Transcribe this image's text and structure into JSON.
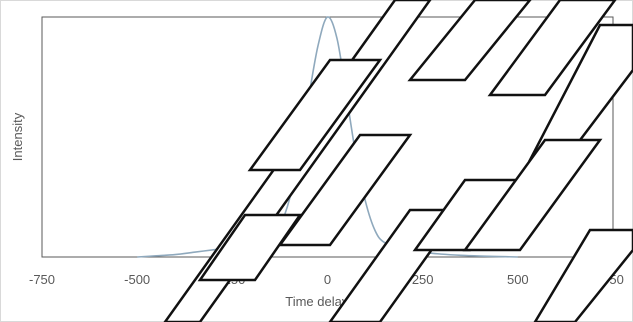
{
  "chart_data": {
    "type": "line",
    "title": "",
    "xlabel": "Time delay (fs)",
    "ylabel": "Intensity",
    "xlim": [
      -750,
      750
    ],
    "ylim": [
      0,
      1
    ],
    "xticks": [
      -750,
      -500,
      -250,
      0,
      250,
      500,
      750
    ],
    "xtick_labels": [
      "-750",
      "-500",
      "-250",
      "0",
      "250",
      "500",
      "750"
    ],
    "grid": false,
    "legend": "none",
    "series": [
      {
        "color": "#8fa9bd",
        "x": [
          -500,
          -450,
          -400,
          -350,
          -300,
          -250,
          -200,
          -175,
          -150,
          -125,
          -100,
          -75,
          -50,
          -25,
          0,
          25,
          50,
          75,
          100,
          125,
          150,
          200,
          250,
          300,
          350,
          400,
          450,
          500
        ],
        "y": [
          0.0,
          0.005,
          0.01,
          0.02,
          0.03,
          0.04,
          0.05,
          0.06,
          0.08,
          0.13,
          0.24,
          0.43,
          0.66,
          0.88,
          1.0,
          0.91,
          0.67,
          0.42,
          0.23,
          0.11,
          0.06,
          0.035,
          0.02,
          0.012,
          0.007,
          0.004,
          0.002,
          0.0
        ]
      }
    ]
  },
  "colors": {
    "plot_border": "#595959",
    "outer_border": "#d9d9d9",
    "text": "#595959",
    "watermark_fill": "#ffffff",
    "watermark_stroke": "#111111"
  }
}
